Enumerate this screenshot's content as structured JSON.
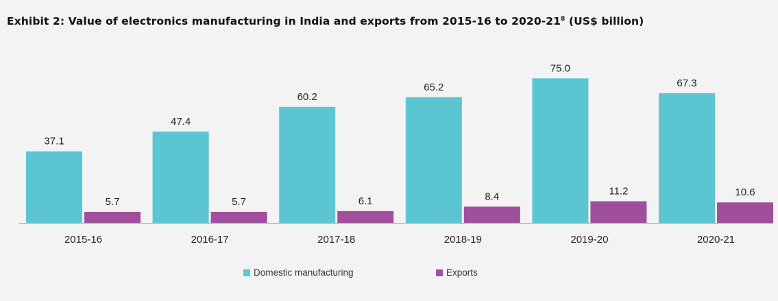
{
  "chart_data": {
    "type": "bar",
    "title": "Exhibit 2: Value of electronics manufacturing in India and exports from 2015-16 to 2020-21",
    "title_superscript": "8",
    "title_suffix": "(US$ billion)",
    "categories": [
      "2015-16",
      "2016-17",
      "2017-18",
      "2018-19",
      "2019-20",
      "2020-21"
    ],
    "series": [
      {
        "name": "Domestic manufacturing",
        "color": "#5bc6d1",
        "values": [
          37.1,
          47.4,
          60.2,
          65.2,
          75.0,
          67.3
        ],
        "labels": [
          "37.1",
          "47.4",
          "60.2",
          "65.2",
          "75.0",
          "67.3"
        ]
      },
      {
        "name": "Exports",
        "color": "#a04f9e",
        "values": [
          5.7,
          5.7,
          6.1,
          8.4,
          11.2,
          10.6
        ],
        "labels": [
          "5.7",
          "5.7",
          "6.1",
          "8.4",
          "11.2",
          "10.6"
        ]
      }
    ],
    "ylim": [
      0,
      80
    ],
    "grid": false,
    "legend_position": "bottom",
    "xlabel": "",
    "ylabel": ""
  }
}
